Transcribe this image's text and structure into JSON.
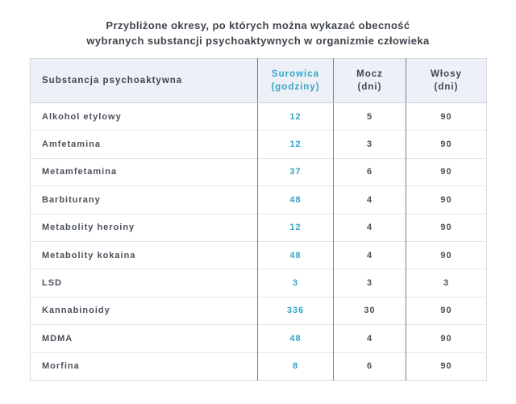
{
  "title": {
    "line1": "Przybliżone okresy, po których można wykazać obecność",
    "line2": "wybranych substancji psychoaktywnych w organizmie człowieka"
  },
  "table": {
    "headers": [
      {
        "line1": "Substancja psychoaktywna",
        "line2": ""
      },
      {
        "line1": "Surowica",
        "line2": "(godziny)"
      },
      {
        "line1": "Mocz",
        "line2": "(dni)"
      },
      {
        "line1": "Włosy",
        "line2": "(dni)"
      }
    ],
    "rows": [
      {
        "substance": "Alkohol etylowy",
        "serum": "12",
        "urine": "5",
        "hair": "90"
      },
      {
        "substance": "Amfetamina",
        "serum": "12",
        "urine": "3",
        "hair": "90"
      },
      {
        "substance": "Metamfetamina",
        "serum": "37",
        "urine": "6",
        "hair": "90"
      },
      {
        "substance": "Barbiturany",
        "serum": "48",
        "urine": "4",
        "hair": "90"
      },
      {
        "substance": "Metabolity heroiny",
        "serum": "12",
        "urine": "4",
        "hair": "90"
      },
      {
        "substance": "Metabolity kokaina",
        "serum": "48",
        "urine": "4",
        "hair": "90"
      },
      {
        "substance": "LSD",
        "serum": "3",
        "urine": "3",
        "hair": "3"
      },
      {
        "substance": "Kannabinoidy",
        "serum": "336",
        "urine": "30",
        "hair": "90"
      },
      {
        "substance": "MDMA",
        "serum": "48",
        "urine": "4",
        "hair": "90"
      },
      {
        "substance": "Morfina",
        "serum": "8",
        "urine": "6",
        "hair": "90"
      }
    ]
  },
  "colors": {
    "accent_teal": "#35a4c6",
    "header_background": "#edf1f7",
    "text_dark": "#3e454e",
    "vertical_border": "#76818f",
    "horizontal_border": "#e4e7ea"
  },
  "chart_data": {
    "type": "table",
    "title": "Przybliżone okresy, po których można wykazać obecność wybranych substancji psychoaktywnych w organizmie człowieka",
    "columns": [
      "Substancja psychoaktywna",
      "Surowica (godziny)",
      "Mocz (dni)",
      "Włosy (dni)"
    ],
    "rows": [
      [
        "Alkohol etylowy",
        12,
        5,
        90
      ],
      [
        "Amfetamina",
        12,
        3,
        90
      ],
      [
        "Metamfetamina",
        37,
        6,
        90
      ],
      [
        "Barbiturany",
        48,
        4,
        90
      ],
      [
        "Metabolity heroiny",
        12,
        4,
        90
      ],
      [
        "Metabolity kokaina",
        48,
        4,
        90
      ],
      [
        "LSD",
        3,
        3,
        3
      ],
      [
        "Kannabinoidy",
        336,
        30,
        90
      ],
      [
        "MDMA",
        48,
        4,
        90
      ],
      [
        "Morfina",
        8,
        6,
        90
      ]
    ],
    "legend_position": "none",
    "grid": true
  }
}
